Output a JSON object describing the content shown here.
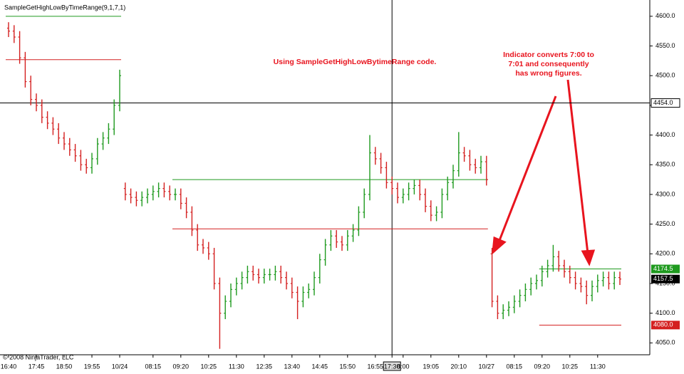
{
  "chart_data": {
    "type": "ohlc",
    "indicator_label": "SampleGetHighLowByTimeRange(9,1,7,1)",
    "annotation": "Using SampleGetHighLowBytimeRange code.",
    "callout": [
      "Indicator converts 7:00 to",
      "7:01 and consequently",
      "has wrong figures."
    ],
    "copyright": "© 2008 NinjaTrader, LLC",
    "up_color": "#1f9a1f",
    "down_color": "#d42020",
    "categories": [
      "16:40",
      null,
      null,
      null,
      null,
      "17:45",
      null,
      null,
      null,
      null,
      "18:50",
      null,
      null,
      null,
      null,
      "19:55",
      null,
      null,
      null,
      null,
      "10/24",
      null,
      null,
      null,
      null,
      null,
      "08:15",
      null,
      null,
      null,
      null,
      "09:20",
      null,
      null,
      null,
      null,
      "10:25",
      null,
      null,
      null,
      null,
      "11:30",
      null,
      null,
      null,
      null,
      "12:35",
      null,
      null,
      null,
      null,
      "13:40",
      null,
      null,
      null,
      null,
      "14:45",
      null,
      null,
      null,
      null,
      "15:50",
      null,
      null,
      null,
      null,
      "16:55",
      null,
      null,
      "17:30",
      null,
      "8:00",
      null,
      null,
      null,
      null,
      "19:05",
      null,
      null,
      null,
      null,
      "20:10",
      null,
      null,
      null,
      null,
      "10/27",
      null,
      null,
      null,
      null,
      "08:15",
      null,
      null,
      null,
      null,
      "09:20",
      null,
      null,
      null,
      null,
      "10:25",
      null,
      null,
      null,
      null,
      "11:30",
      null,
      null,
      null,
      null
    ],
    "open": [
      4580,
      4575,
      4565,
      4530,
      4490,
      4460,
      4450,
      4430,
      4420,
      4410,
      4395,
      4385,
      4375,
      4365,
      4350,
      4345,
      4360,
      4385,
      4395,
      4410,
      4450,
      4310,
      4300,
      4295,
      4290,
      4295,
      4300,
      4305,
      4310,
      4305,
      4300,
      4300,
      4285,
      4270,
      4240,
      4215,
      4210,
      4200,
      4150,
      4100,
      4120,
      4140,
      4150,
      4160,
      4170,
      4165,
      4160,
      4165,
      4165,
      4170,
      4160,
      4150,
      4135,
      4120,
      4135,
      4140,
      4160,
      4190,
      4215,
      4230,
      4220,
      4215,
      4230,
      4240,
      4270,
      4300,
      4370,
      4360,
      4345,
      4320,
      4310,
      4295,
      4300,
      4310,
      4315,
      4300,
      4280,
      4265,
      4270,
      4300,
      4320,
      4340,
      4370,
      4365,
      4350,
      4345,
      4355,
      4200,
      4120,
      4100,
      4105,
      4110,
      4120,
      4130,
      4140,
      4150,
      4155,
      4170,
      4180,
      4195,
      4180,
      4170,
      4160,
      4150,
      4145,
      4130,
      4145,
      4155,
      4160,
      4150,
      4160
    ],
    "high": [
      4590,
      4585,
      4575,
      4540,
      4500,
      4470,
      4460,
      4440,
      4430,
      4420,
      4405,
      4395,
      4385,
      4375,
      4360,
      4370,
      4395,
      4405,
      4420,
      4460,
      4510,
      4320,
      4310,
      4305,
      4305,
      4310,
      4315,
      4320,
      4320,
      4315,
      4310,
      4310,
      4295,
      4280,
      4250,
      4225,
      4220,
      4210,
      4160,
      4130,
      4150,
      4160,
      4170,
      4180,
      4180,
      4175,
      4175,
      4175,
      4180,
      4180,
      4170,
      4160,
      4145,
      4145,
      4150,
      4170,
      4200,
      4225,
      4240,
      4240,
      4230,
      4240,
      4250,
      4280,
      4310,
      4400,
      4380,
      4370,
      4355,
      4330,
      4320,
      4310,
      4320,
      4325,
      4325,
      4310,
      4290,
      4280,
      4310,
      4330,
      4350,
      4405,
      4380,
      4375,
      4360,
      4365,
      4365,
      4210,
      4130,
      4115,
      4120,
      4130,
      4140,
      4150,
      4160,
      4165,
      4180,
      4190,
      4215,
      4205,
      4190,
      4180,
      4170,
      4160,
      4155,
      4155,
      4165,
      4170,
      4170,
      4170,
      4170
    ],
    "low": [
      4565,
      4555,
      4520,
      4480,
      4450,
      4440,
      4420,
      4410,
      4400,
      4385,
      4375,
      4365,
      4355,
      4340,
      4335,
      4335,
      4350,
      4375,
      4385,
      4400,
      4440,
      4290,
      4285,
      4280,
      4280,
      4285,
      4290,
      4295,
      4295,
      4290,
      4290,
      4275,
      4260,
      4230,
      4205,
      4200,
      4190,
      4140,
      4040,
      4090,
      4110,
      4130,
      4140,
      4150,
      4155,
      4150,
      4150,
      4155,
      4155,
      4150,
      4140,
      4125,
      4090,
      4110,
      4125,
      4130,
      4150,
      4180,
      4205,
      4210,
      4205,
      4205,
      4220,
      4230,
      4260,
      4290,
      4350,
      4335,
      4310,
      4300,
      4285,
      4285,
      4290,
      4300,
      4290,
      4270,
      4255,
      4255,
      4260,
      4290,
      4310,
      4330,
      4355,
      4340,
      4335,
      4335,
      4315,
      4110,
      4090,
      4090,
      4095,
      4100,
      4110,
      4120,
      4130,
      4140,
      4145,
      4160,
      4170,
      4170,
      4160,
      4150,
      4140,
      4135,
      4115,
      4120,
      4135,
      4145,
      4140,
      4140,
      4147.5
    ],
    "close": [
      4575,
      4565,
      4530,
      4490,
      4460,
      4450,
      4430,
      4420,
      4410,
      4395,
      4385,
      4375,
      4365,
      4350,
      4345,
      4360,
      4385,
      4395,
      4410,
      4450,
      4500,
      4300,
      4295,
      4290,
      4295,
      4300,
      4305,
      4310,
      4305,
      4300,
      4300,
      4285,
      4270,
      4240,
      4215,
      4210,
      4200,
      4150,
      4100,
      4120,
      4140,
      4150,
      4160,
      4170,
      4165,
      4160,
      4165,
      4165,
      4170,
      4160,
      4150,
      4135,
      4120,
      4135,
      4140,
      4160,
      4190,
      4215,
      4230,
      4220,
      4215,
      4230,
      4240,
      4270,
      4300,
      4370,
      4360,
      4345,
      4320,
      4310,
      4295,
      4300,
      4310,
      4315,
      4300,
      4280,
      4265,
      4270,
      4300,
      4320,
      4340,
      4370,
      4365,
      4350,
      4345,
      4355,
      4325,
      4120,
      4100,
      4105,
      4110,
      4120,
      4130,
      4140,
      4150,
      4155,
      4170,
      4180,
      4195,
      4180,
      4170,
      4160,
      4150,
      4145,
      4130,
      4145,
      4155,
      4160,
      4150,
      4160,
      4157.5
    ],
    "levels": [
      {
        "value": 4600,
        "color": "#1f9a1f",
        "range": [
          0,
          20
        ]
      },
      {
        "value": 4527,
        "color": "#d42020",
        "range": [
          0,
          20
        ]
      },
      {
        "value": 4325,
        "color": "#1f9a1f",
        "range": [
          30,
          86
        ]
      },
      {
        "value": 4242,
        "color": "#d42020",
        "range": [
          30,
          86
        ]
      },
      {
        "value": 4174.5,
        "color": "#1f9a1f",
        "range": [
          96,
          110
        ]
      },
      {
        "value": 4080,
        "color": "#d42020",
        "range": [
          96,
          110
        ]
      }
    ],
    "crosshair": {
      "value": 4454,
      "label": "4454.0",
      "category_index": 69
    },
    "price_labels": [
      {
        "value": 4174.5,
        "label": "4174.5",
        "color": "#1f9a1f"
      },
      {
        "value": 4157.5,
        "label": "4157.5",
        "color": "#000000"
      },
      {
        "value": 4080,
        "label": "4080.0",
        "color": "#d42020"
      }
    ],
    "ylim": [
      4030,
      4625
    ],
    "yticks": [
      {
        "value": 4050,
        "label": "4050.0"
      },
      {
        "value": 4100,
        "label": "4100.0"
      },
      {
        "value": 4150,
        "label": "4150.0"
      },
      {
        "value": 4200,
        "label": "4200.0"
      },
      {
        "value": 4250,
        "label": "4250.0"
      },
      {
        "value": 4300,
        "label": "4300.0"
      },
      {
        "value": 4350,
        "label": "4350.0"
      },
      {
        "value": 4400,
        "label": "4400.0"
      },
      {
        "value": 4450,
        "label": "4450.0"
      },
      {
        "value": 4500,
        "label": "4500.0"
      },
      {
        "value": 4550,
        "label": "4550.0"
      },
      {
        "value": 4600,
        "label": "4600.0"
      }
    ]
  }
}
